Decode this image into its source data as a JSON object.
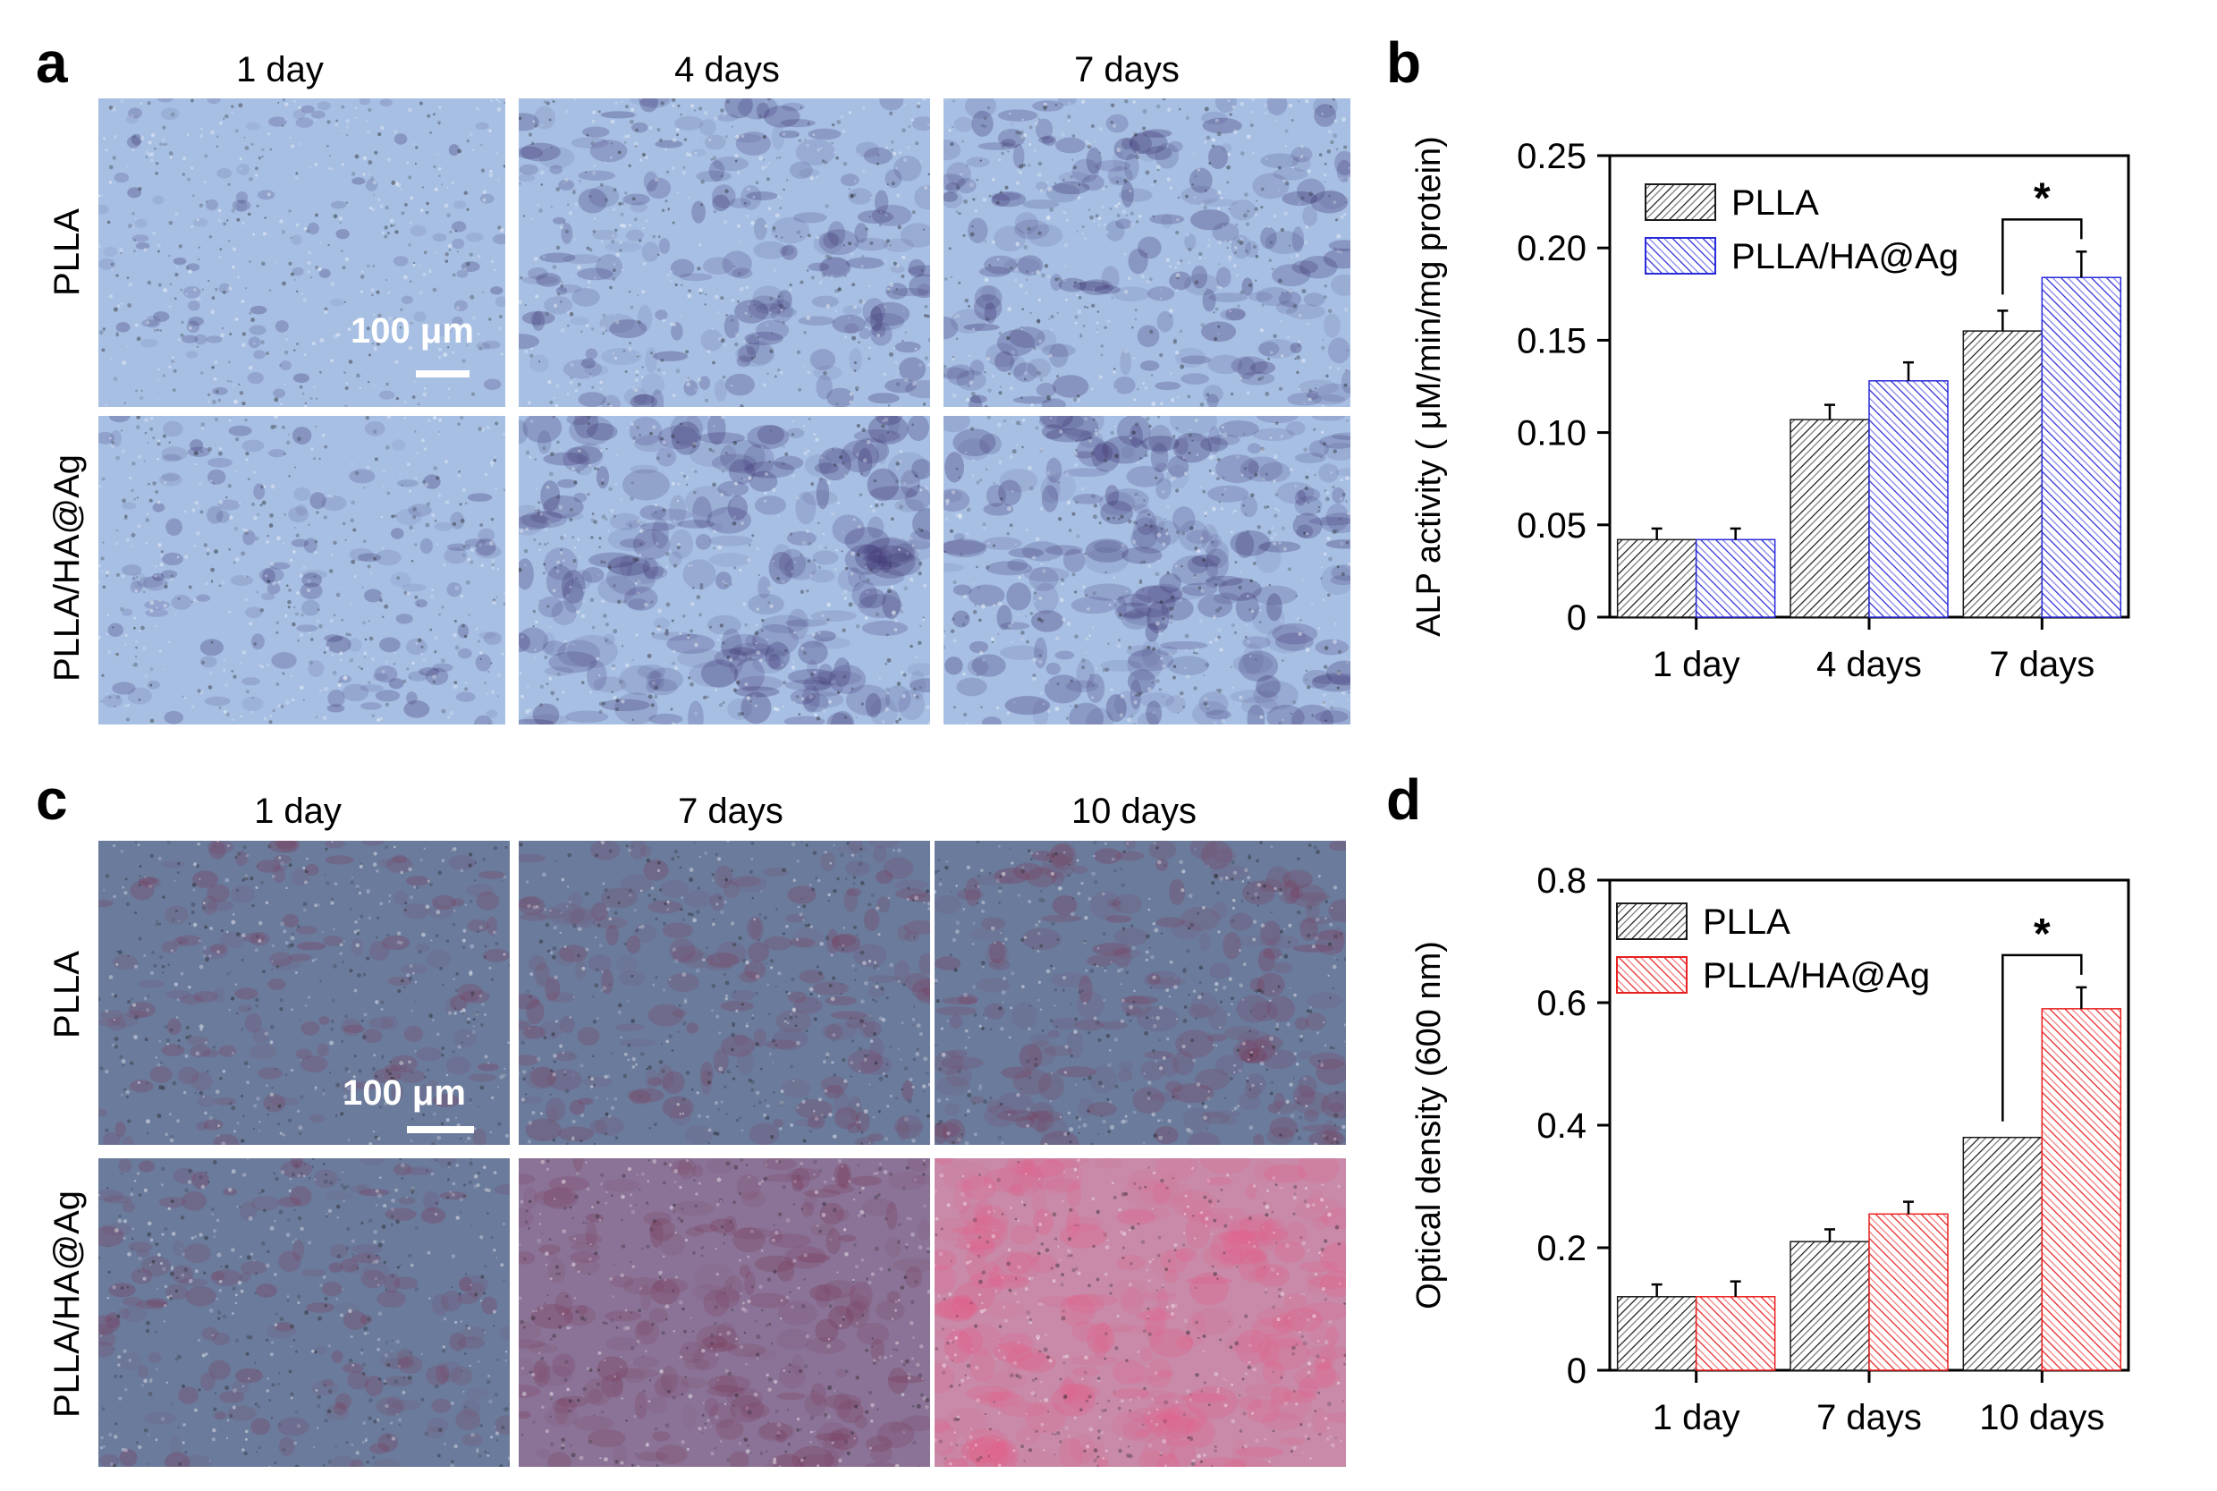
{
  "panels": {
    "a": {
      "letter": "a",
      "columns": [
        "1 day",
        "4 days",
        "7 days"
      ],
      "rows": [
        "PLLA",
        "PLLA/HA@Ag"
      ],
      "scale_bar": "100 μm"
    },
    "c": {
      "letter": "c",
      "columns": [
        "1 day",
        "7 days",
        "10 days"
      ],
      "rows": [
        "PLLA",
        "PLLA/HA@Ag"
      ],
      "scale_bar": "100 μm"
    },
    "b": {
      "letter": "b"
    },
    "d": {
      "letter": "d"
    }
  },
  "colors": {
    "alp_bg": "#a7bfe3",
    "alp_stain": "#3d3470",
    "ars_bg": "#6b7b9c",
    "ars_stain": "#7a3a5a",
    "ars_red": "#e35f8a",
    "plla": "#1a1a1a",
    "plla_ha_ag_b": "#2a2ad8",
    "plla_ha_ag_d": "#e82020"
  },
  "chart_data": [
    {
      "type": "bar",
      "panel": "b",
      "categories": [
        "1 day",
        "4 days",
        "7 days"
      ],
      "series": [
        {
          "name": "PLLA",
          "values": [
            0.042,
            0.107,
            0.155
          ],
          "errors": [
            0.006,
            0.008,
            0.011
          ],
          "color": "#1a1a1a"
        },
        {
          "name": "PLLA/HA@Ag",
          "values": [
            0.042,
            0.128,
            0.184
          ],
          "errors": [
            0.006,
            0.01,
            0.014
          ],
          "color": "#2a2ad8"
        }
      ],
      "xlabel": "",
      "ylabel": "ALP activity ( μM/min/mg protein)",
      "ylim": [
        0,
        0.25
      ],
      "yticks": [
        "0",
        "0.05",
        "0.10",
        "0.15",
        "0.20",
        "0.25"
      ],
      "significance": {
        "label": "*",
        "category": "7 days"
      },
      "legend_position": "top-left"
    },
    {
      "type": "bar",
      "panel": "d",
      "categories": [
        "1 day",
        "7 days",
        "10 days"
      ],
      "series": [
        {
          "name": "PLLA",
          "values": [
            0.12,
            0.21,
            0.38
          ],
          "errors": [
            0.02,
            0.02,
            0.0
          ],
          "color": "#1a1a1a"
        },
        {
          "name": "PLLA/HA@Ag",
          "values": [
            0.12,
            0.255,
            0.59
          ],
          "errors": [
            0.025,
            0.02,
            0.035
          ],
          "color": "#e82020"
        }
      ],
      "xlabel": "",
      "ylabel": "Optical density (600 nm)",
      "ylim": [
        0,
        0.8
      ],
      "yticks": [
        "0",
        "0.2",
        "0.4",
        "0.6",
        "0.8"
      ],
      "significance": {
        "label": "*",
        "category": "10 days"
      },
      "legend_position": "top-left"
    }
  ]
}
